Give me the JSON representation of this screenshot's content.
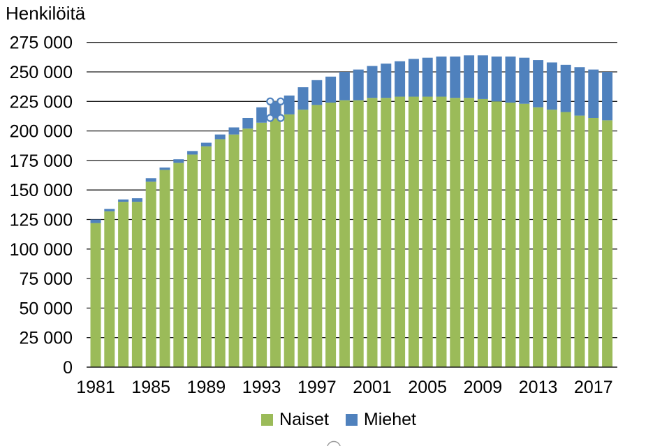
{
  "title": "Henkilöitä",
  "y_axis": {
    "min": 0,
    "max": 275000,
    "step": 25000,
    "tick_labels": [
      "0",
      "25 000",
      "50 000",
      "75 000",
      "100 000",
      "125 000",
      "150 000",
      "175 000",
      "200 000",
      "225 000",
      "250 000",
      "275 000"
    ]
  },
  "x_axis": {
    "tick_labels": [
      "1981",
      "1985",
      "1989",
      "1993",
      "1997",
      "2001",
      "2005",
      "2009",
      "2013",
      "2017"
    ],
    "tick_category_indices": [
      0,
      4,
      8,
      12,
      16,
      20,
      24,
      28,
      32,
      36
    ]
  },
  "legend": {
    "items": [
      {
        "label": "Naiset",
        "color": "#9bbb59"
      },
      {
        "label": "Miehet",
        "color": "#4f81bd"
      }
    ]
  },
  "selection": {
    "series": "Miehet",
    "category": "1994",
    "handle_stroke": "#4f81bd",
    "handle_fill": "#eaf3fb",
    "outline_color": "#8c8c8c"
  },
  "decorations": {
    "clipped_circle_bottom_center": {
      "color": "#999999"
    }
  },
  "chart_data": {
    "type": "bar",
    "stacked": true,
    "grid": true,
    "legend_position": "bottom",
    "title": "Henkilöitä",
    "ylabel": "Henkilöitä",
    "ylim": [
      0,
      275000
    ],
    "categories": [
      1981,
      1982,
      1983,
      1984,
      1985,
      1986,
      1987,
      1988,
      1989,
      1990,
      1991,
      1992,
      1993,
      1994,
      1995,
      1996,
      1997,
      1998,
      1999,
      2000,
      2001,
      2002,
      2003,
      2004,
      2005,
      2006,
      2007,
      2008,
      2009,
      2010,
      2011,
      2012,
      2013,
      2014,
      2015,
      2016,
      2017,
      2018
    ],
    "series": [
      {
        "name": "Naiset",
        "color": "#9bbb59",
        "values": [
          122000,
          132000,
          140000,
          140000,
          157000,
          167000,
          173000,
          180000,
          187000,
          193000,
          197000,
          202000,
          207000,
          211000,
          214000,
          218000,
          222000,
          224000,
          226000,
          226000,
          228000,
          228000,
          229000,
          229000,
          229000,
          229000,
          228000,
          228000,
          227000,
          225000,
          224000,
          223000,
          220000,
          218000,
          216000,
          213000,
          211000,
          209000
        ]
      },
      {
        "name": "Miehet",
        "color": "#4f81bd",
        "values": [
          3000,
          2000,
          2000,
          3000,
          3000,
          2000,
          3000,
          3000,
          3000,
          4000,
          6000,
          9000,
          13000,
          14000,
          16000,
          19000,
          21000,
          22000,
          24000,
          26000,
          27000,
          29000,
          30000,
          32000,
          33000,
          34000,
          35000,
          36000,
          37000,
          38000,
          39000,
          39000,
          40000,
          40000,
          40000,
          41000,
          41000,
          41000
        ]
      }
    ]
  }
}
